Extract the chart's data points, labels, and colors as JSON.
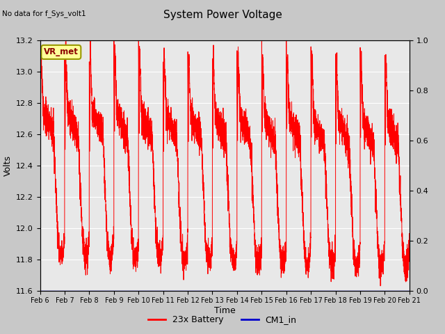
{
  "title": "System Power Voltage",
  "subtitle": "No data for f_Sys_volt1",
  "xlabel": "Time",
  "ylabel": "Volts",
  "ylim_left": [
    11.6,
    13.2
  ],
  "ylim_right": [
    0.0,
    1.0
  ],
  "yticks_left": [
    11.6,
    11.8,
    12.0,
    12.2,
    12.4,
    12.6,
    12.8,
    13.0,
    13.2
  ],
  "yticks_right": [
    0.0,
    0.2,
    0.4,
    0.6,
    0.8,
    1.0
  ],
  "xtick_labels": [
    "Feb 6",
    "Feb 7",
    "Feb 8",
    "Feb 9",
    "Feb 10",
    "Feb 11",
    "Feb 12",
    "Feb 13",
    "Feb 14",
    "Feb 15",
    "Feb 16",
    "Feb 17",
    "Feb 18",
    "Feb 19",
    "Feb 20",
    "Feb 21"
  ],
  "fig_bg_color": "#c8c8c8",
  "plot_bg_color": "#e8e8e8",
  "line_color_battery": "#ff0000",
  "line_color_cm1": "#0000cc",
  "legend_labels": [
    "23x Battery",
    "CM1_in"
  ],
  "annotation_label": "VR_met",
  "annotation_box_color": "#ffff99",
  "annotation_box_edge": "#999900"
}
